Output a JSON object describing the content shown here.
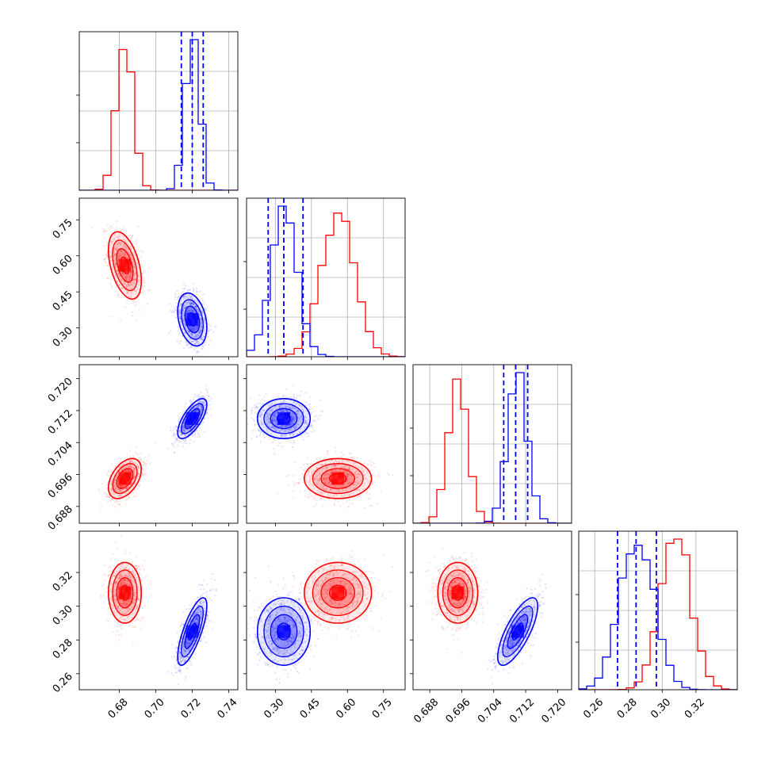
{
  "chart_data": {
    "type": "corner",
    "parameters": [
      {
        "ticks": [
          "0.68",
          "0.70",
          "0.72",
          "0.74"
        ],
        "tick_values": [
          0.68,
          0.7,
          0.72,
          0.74
        ],
        "range": [
          0.658,
          0.745
        ]
      },
      {
        "ticks": [
          "0.30",
          "0.45",
          "0.60",
          "0.75"
        ],
        "tick_values": [
          0.3,
          0.45,
          0.6,
          0.75
        ],
        "range": [
          0.18,
          0.84
        ]
      },
      {
        "ticks": [
          "0.688",
          "0.696",
          "0.704",
          "0.712",
          "0.720"
        ],
        "tick_values": [
          0.688,
          0.696,
          0.704,
          0.712,
          0.72
        ],
        "range": [
          0.6838,
          0.7235
        ]
      },
      {
        "ticks": [
          "0.26",
          "0.28",
          "0.30",
          "0.32"
        ],
        "tick_values": [
          0.26,
          0.28,
          0.3,
          0.32
        ],
        "range": [
          0.2505,
          0.3445
        ]
      }
    ],
    "series": [
      {
        "color": "#ff0000",
        "mean": [
          0.683,
          0.56,
          0.695,
          0.308
        ],
        "sd": [
          0.0045,
          0.07,
          0.0025,
          0.009
        ],
        "corr": [
          [
            1,
            -0.45,
            0.45,
            0
          ],
          [
            -0.45,
            1,
            0,
            0
          ],
          [
            0.45,
            0,
            1,
            0
          ],
          [
            0,
            0,
            0,
            1
          ]
        ]
      },
      {
        "color": "#0000ff",
        "mean": [
          0.72,
          0.335,
          0.71,
          0.285
        ],
        "sd": [
          0.004,
          0.055,
          0.0025,
          0.01
        ],
        "corr": [
          [
            1,
            -0.3,
            0.7,
            0.75
          ],
          [
            -0.3,
            1,
            0,
            0
          ],
          [
            0.7,
            0,
            1,
            0.75
          ],
          [
            0.75,
            0,
            0.75,
            1
          ]
        ],
        "quantiles": [
          [
            0.714,
            0.72,
            0.726
          ],
          [
            0.27,
            0.335,
            0.415
          ],
          [
            0.7065,
            0.7095,
            0.7125
          ],
          [
            0.2735,
            0.2845,
            0.2965
          ]
        ]
      }
    ],
    "grid": true
  }
}
